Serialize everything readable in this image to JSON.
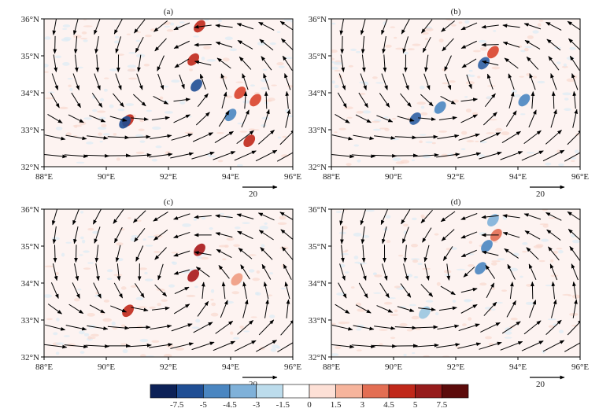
{
  "chart_data": [
    {
      "type": "vector-field",
      "panel": "(a)",
      "xticks": [
        "88°E",
        "90°E",
        "92°E",
        "94°E",
        "96°E"
      ],
      "yticks": [
        "32°N",
        "33°N",
        "34°N",
        "35°N",
        "36°N"
      ],
      "xlim": [
        88,
        96
      ],
      "ylim": [
        32,
        36
      ],
      "reference_vector": "20",
      "cyclone_center": [
        92.6,
        34.3
      ],
      "shading_features": [
        {
          "lon": 90.7,
          "lat": 33.25,
          "value": 6,
          "color": "#c0281a"
        },
        {
          "lon": 90.6,
          "lat": 33.2,
          "value": -6,
          "color": "#1f4e94"
        },
        {
          "lon": 93.0,
          "lat": 35.8,
          "value": 7.5,
          "color": "#c0281a"
        },
        {
          "lon": 92.8,
          "lat": 34.9,
          "value": 6,
          "color": "#c0281a"
        },
        {
          "lon": 92.9,
          "lat": 34.2,
          "value": -7,
          "color": "#1f4e94"
        },
        {
          "lon": 94.3,
          "lat": 34.0,
          "value": 5,
          "color": "#d9432b"
        },
        {
          "lon": 94.8,
          "lat": 33.8,
          "value": 5,
          "color": "#d9432b"
        },
        {
          "lon": 94.0,
          "lat": 33.4,
          "value": -4.5,
          "color": "#4a86c1"
        },
        {
          "lon": 94.6,
          "lat": 32.7,
          "value": 6,
          "color": "#c0281a"
        }
      ]
    },
    {
      "type": "vector-field",
      "panel": "(b)",
      "xticks": [
        "88°E",
        "90°E",
        "92°E",
        "94°E",
        "96°E"
      ],
      "yticks": [
        "32°N",
        "33°N",
        "34°N",
        "35°N",
        "36°N"
      ],
      "xlim": [
        88,
        96
      ],
      "ylim": [
        32,
        36
      ],
      "reference_vector": "20",
      "cyclone_center": [
        92.6,
        34.3
      ],
      "shading_features": [
        {
          "lon": 90.7,
          "lat": 33.3,
          "value": -6,
          "color": "#2d5fa3"
        },
        {
          "lon": 91.5,
          "lat": 33.6,
          "value": -4.5,
          "color": "#4a86c1"
        },
        {
          "lon": 92.9,
          "lat": 34.8,
          "value": -6,
          "color": "#2d5fa3"
        },
        {
          "lon": 93.2,
          "lat": 35.1,
          "value": 5,
          "color": "#d9432b"
        },
        {
          "lon": 94.2,
          "lat": 33.8,
          "value": -4.5,
          "color": "#4a86c1"
        }
      ]
    },
    {
      "type": "vector-field",
      "panel": "(c)",
      "xticks": [
        "88°E",
        "90°E",
        "92°E",
        "94°E",
        "96°E"
      ],
      "yticks": [
        "32°N",
        "33°N",
        "34°N",
        "35°N",
        "36°N"
      ],
      "xlim": [
        88,
        96
      ],
      "ylim": [
        32,
        36
      ],
      "reference_vector": "20",
      "cyclone_center": [
        92.4,
        34.0
      ],
      "shading_features": [
        {
          "lon": 90.7,
          "lat": 33.25,
          "value": 6,
          "color": "#c0281a"
        },
        {
          "lon": 93.0,
          "lat": 34.9,
          "value": 7.5,
          "color": "#a8171a"
        },
        {
          "lon": 92.8,
          "lat": 34.2,
          "value": 7.5,
          "color": "#a8171a"
        },
        {
          "lon": 94.2,
          "lat": 34.1,
          "value": 3,
          "color": "#ef9b81"
        }
      ]
    },
    {
      "type": "vector-field",
      "panel": "(d)",
      "xticks": [
        "88°E",
        "90°E",
        "92°E",
        "94°E",
        "96°E"
      ],
      "yticks": [
        "32°N",
        "33°N",
        "34°N",
        "35°N",
        "36°N"
      ],
      "xlim": [
        88,
        96
      ],
      "ylim": [
        32,
        36
      ],
      "reference_vector": "20",
      "cyclone_center": [
        92.5,
        34.2
      ],
      "shading_features": [
        {
          "lon": 93.0,
          "lat": 35.0,
          "value": -4.5,
          "color": "#4a86c1"
        },
        {
          "lon": 92.8,
          "lat": 34.4,
          "value": -4.5,
          "color": "#4a86c1"
        },
        {
          "lon": 93.3,
          "lat": 35.3,
          "value": 4.5,
          "color": "#e36e53"
        },
        {
          "lon": 93.2,
          "lat": 35.7,
          "value": -3,
          "color": "#7fb1d9"
        },
        {
          "lon": 91.0,
          "lat": 33.2,
          "value": -3,
          "color": "#9ac6e0"
        }
      ]
    }
  ],
  "colorbar": {
    "labels": [
      "-7.5",
      "-5",
      "-4.5",
      "-3",
      "-1.5",
      "0",
      "1.5",
      "3",
      "4.5",
      "5",
      "7.5"
    ],
    "colors": [
      "#0c2157",
      "#1f4e94",
      "#4a86c1",
      "#7fb1d9",
      "#bcdcec",
      "#ffffff",
      "#fde0d6",
      "#f6b49c",
      "#e36e53",
      "#c0281a",
      "#961b1b",
      "#5c0b0b"
    ]
  }
}
